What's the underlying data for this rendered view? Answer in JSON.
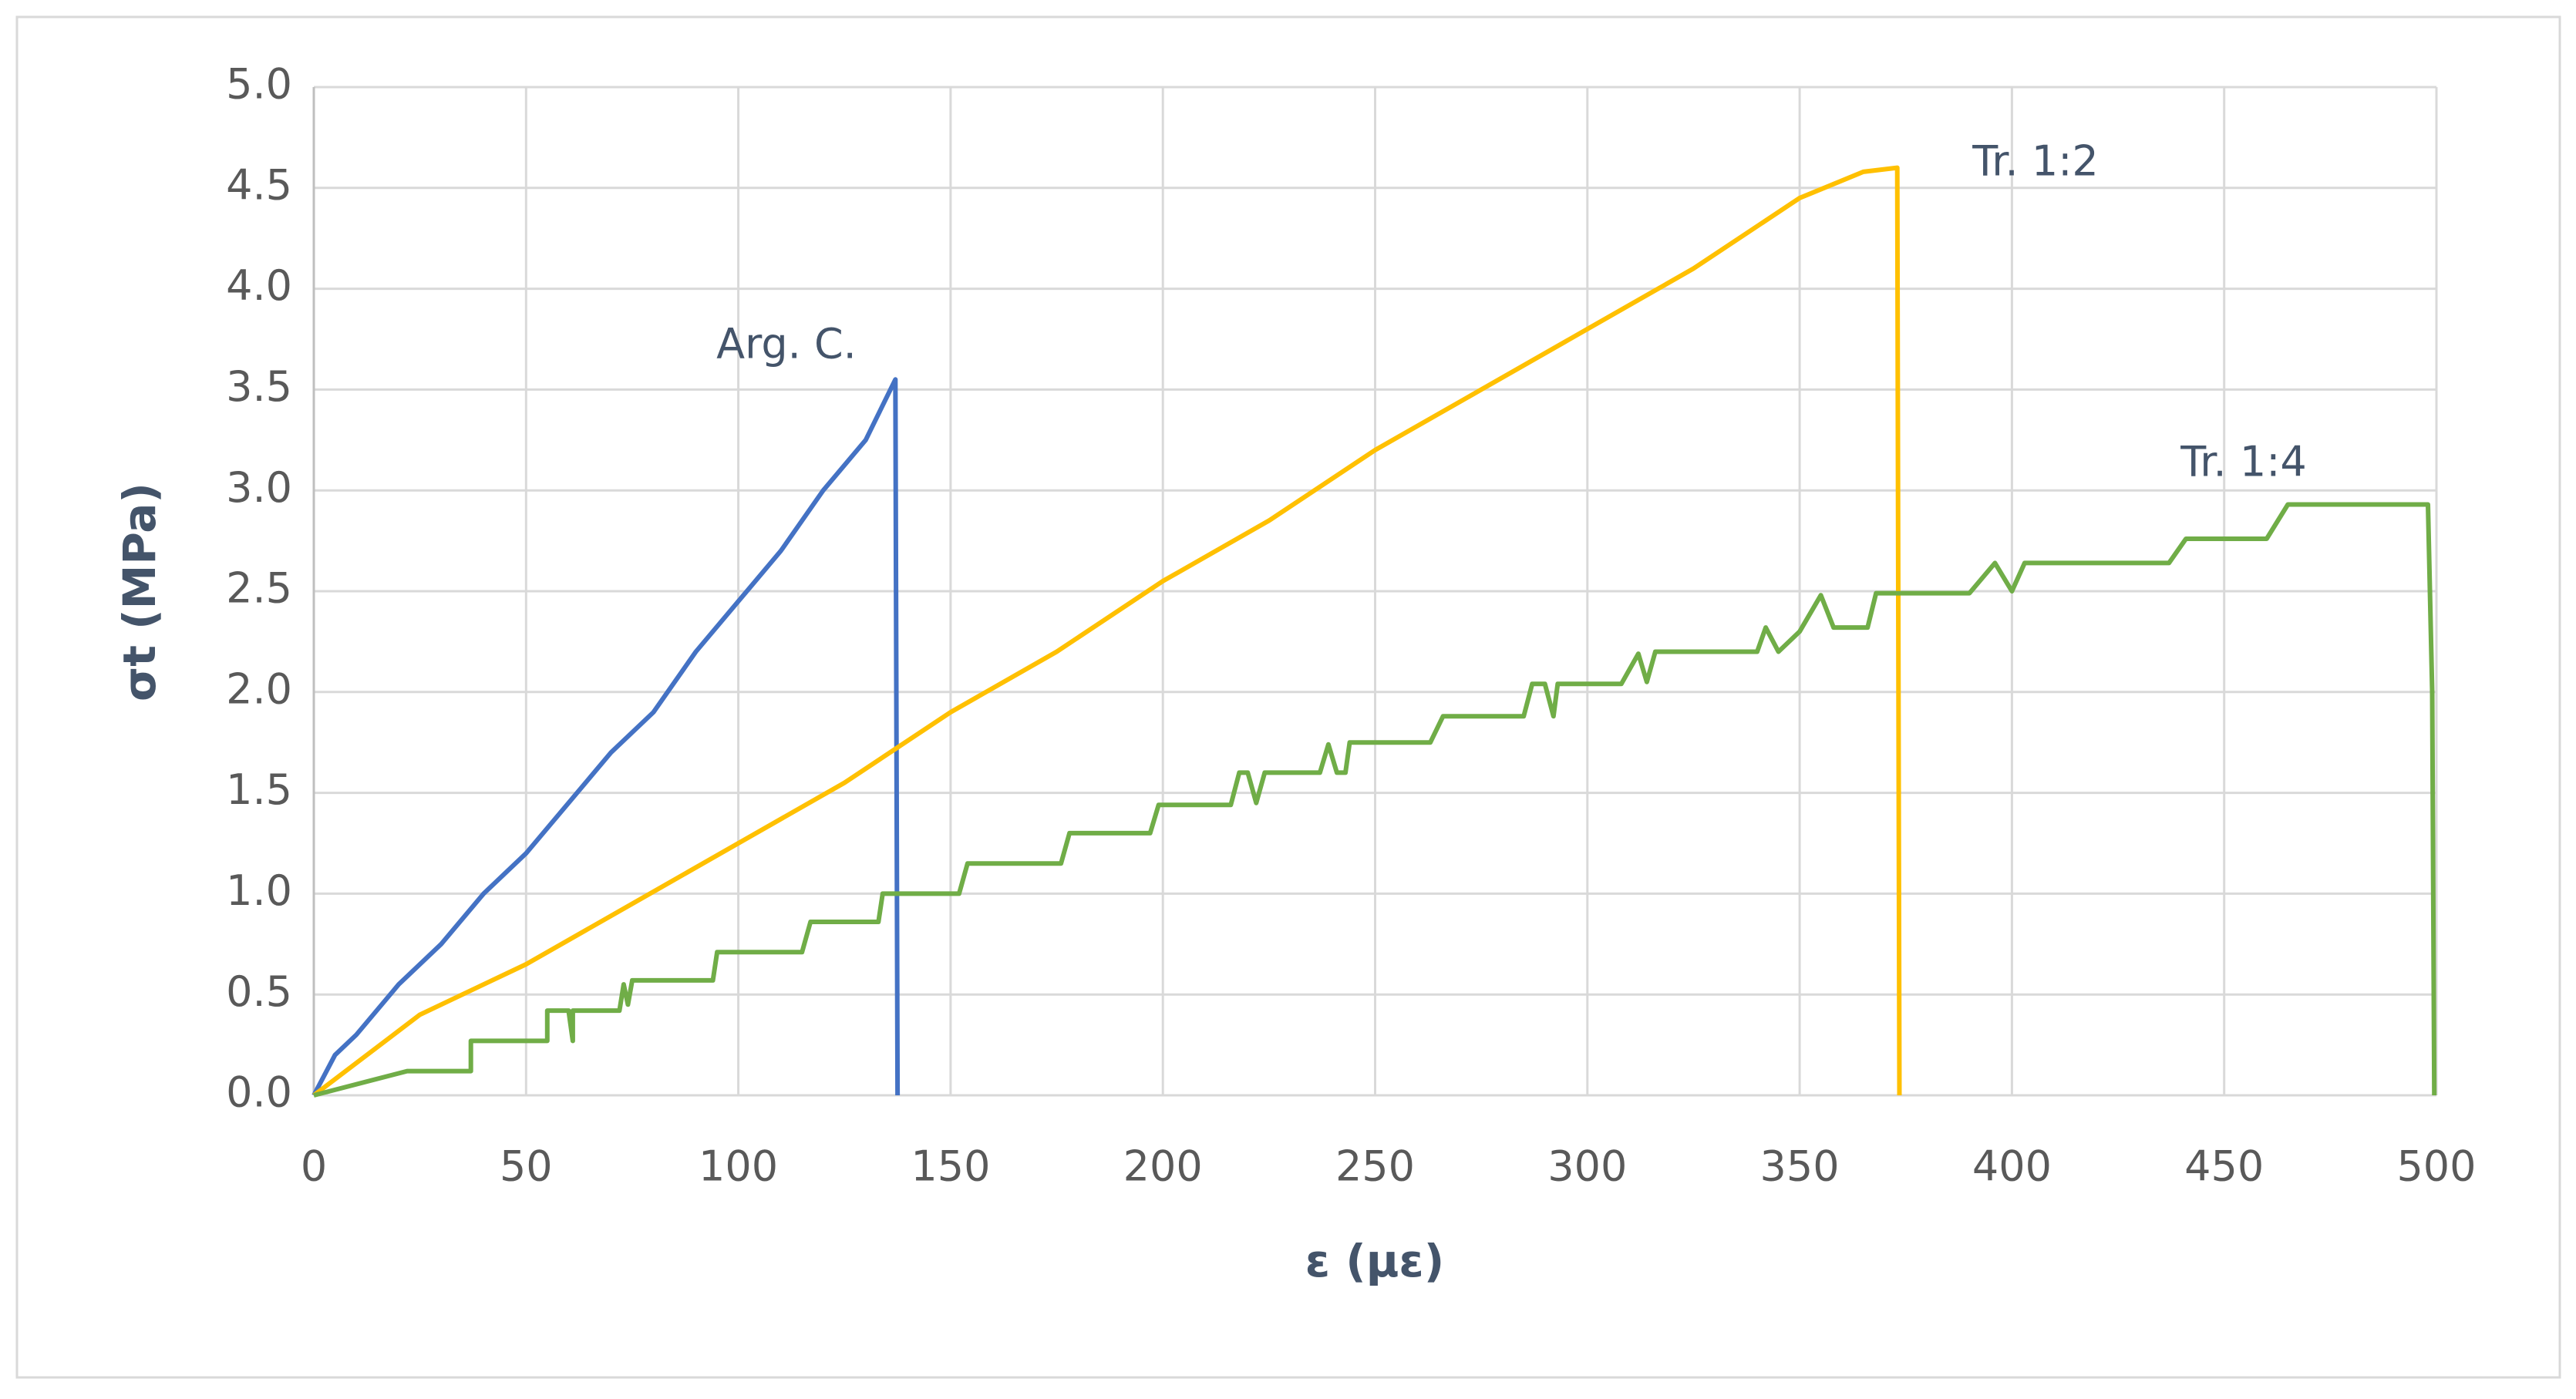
{
  "chart_data": {
    "type": "line",
    "x_label": "ε (με)",
    "y_label": "σt (MPa)",
    "xlim": [
      0,
      500
    ],
    "xticks": [
      0,
      50,
      100,
      150,
      200,
      250,
      300,
      350,
      400,
      450,
      500
    ],
    "ylim": [
      0,
      5
    ],
    "yticks": [
      {
        "value": 0,
        "label": "0.0"
      },
      {
        "value": 0.5,
        "label": "0.5"
      },
      {
        "value": 1,
        "label": "1.0"
      },
      {
        "value": 1.5,
        "label": "1.5"
      },
      {
        "value": 2,
        "label": "2.0"
      },
      {
        "value": 2.5,
        "label": "2.5"
      },
      {
        "value": 3,
        "label": "3.0"
      },
      {
        "value": 3.5,
        "label": "3.5"
      },
      {
        "value": 4,
        "label": "4.0"
      },
      {
        "value": 4.5,
        "label": "4.5"
      },
      {
        "value": 5,
        "label": "5.0"
      }
    ],
    "grid": true,
    "series": [
      {
        "name": "Arg. C.",
        "color": "#4472c4",
        "x": [
          0,
          5,
          10,
          20,
          30,
          40,
          50,
          60,
          70,
          80,
          90,
          100,
          110,
          120,
          130,
          137,
          137.5
        ],
        "values": [
          0,
          0.2,
          0.3,
          0.55,
          0.75,
          1.0,
          1.2,
          1.45,
          1.7,
          1.9,
          2.2,
          2.45,
          2.7,
          3.0,
          3.25,
          3.55,
          0
        ]
      },
      {
        "name": "Tr. 1:2",
        "color": "#ffc000",
        "x": [
          0,
          25,
          50,
          75,
          100,
          125,
          150,
          175,
          200,
          225,
          250,
          275,
          300,
          325,
          350,
          365,
          373,
          373.5
        ],
        "values": [
          0,
          0.4,
          0.65,
          0.95,
          1.25,
          1.55,
          1.9,
          2.2,
          2.55,
          2.85,
          3.2,
          3.5,
          3.8,
          4.1,
          4.45,
          4.58,
          4.6,
          0
        ]
      },
      {
        "name": "Tr. 1:4",
        "color": "#70ad47",
        "x": [
          0,
          22,
          37,
          37,
          55,
          55,
          60,
          61,
          61,
          72,
          73,
          74,
          75,
          94,
          95,
          115,
          117,
          133,
          134,
          152,
          154,
          176,
          178,
          197,
          199,
          216,
          218,
          220,
          222,
          224,
          237,
          239,
          241,
          243,
          244,
          263,
          266,
          285,
          287,
          290,
          292,
          293,
          308,
          312,
          314,
          316,
          340,
          342,
          345,
          350,
          355,
          358,
          366,
          368,
          390,
          396,
          400,
          403,
          437,
          441,
          460,
          465,
          498,
          499,
          499.5
        ],
        "values": [
          0,
          0.12,
          0.12,
          0.27,
          0.27,
          0.42,
          0.42,
          0.27,
          0.42,
          0.42,
          0.55,
          0.45,
          0.57,
          0.57,
          0.71,
          0.71,
          0.86,
          0.86,
          1.0,
          1.0,
          1.15,
          1.15,
          1.3,
          1.3,
          1.44,
          1.44,
          1.6,
          1.6,
          1.45,
          1.6,
          1.6,
          1.74,
          1.6,
          1.6,
          1.75,
          1.75,
          1.88,
          1.88,
          2.04,
          2.04,
          1.88,
          2.04,
          2.04,
          2.19,
          2.05,
          2.2,
          2.2,
          2.32,
          2.2,
          2.3,
          2.48,
          2.32,
          2.32,
          2.49,
          2.49,
          2.64,
          2.5,
          2.64,
          2.64,
          2.76,
          2.76,
          2.93,
          2.93,
          2.0,
          0
        ]
      }
    ]
  }
}
